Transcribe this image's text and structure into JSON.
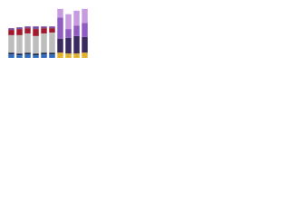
{
  "chart_data": {
    "type": "stacked-bar",
    "categories": [
      null,
      null,
      null,
      null,
      null,
      null,
      null,
      null,
      null,
      null
    ],
    "ylim": [
      0,
      60
    ],
    "series": [
      {
        "color": "#2e6bbf",
        "values": [
          4,
          3,
          4,
          3,
          4,
          4,
          0,
          0,
          0,
          0
        ]
      },
      {
        "color": "#1f2d4f",
        "values": [
          2,
          2,
          2,
          2,
          2,
          2,
          0,
          0,
          0,
          0
        ]
      },
      {
        "color": "#bdbdbd",
        "values": [
          20,
          21,
          22,
          20,
          22,
          23,
          0,
          0,
          0,
          0
        ]
      },
      {
        "color": "#a3182b",
        "values": [
          6,
          7,
          6,
          8,
          6,
          5,
          0,
          0,
          0,
          0
        ]
      },
      {
        "color": "#7b4fa3",
        "values": [
          2,
          2,
          2,
          3,
          2,
          2,
          0,
          0,
          0,
          0
        ]
      },
      {
        "color": "#e2b22a",
        "values": [
          0,
          0,
          0,
          0,
          0,
          0,
          6,
          5,
          5,
          6
        ]
      },
      {
        "color": "#3b2a5e",
        "values": [
          0,
          0,
          0,
          0,
          0,
          0,
          16,
          18,
          20,
          18
        ]
      },
      {
        "color": "#8e5cc2",
        "values": [
          0,
          0,
          0,
          0,
          0,
          0,
          24,
          10,
          12,
          16
        ]
      },
      {
        "color": "#c79bdf",
        "values": [
          0,
          0,
          0,
          0,
          0,
          0,
          10,
          17,
          17,
          16
        ]
      }
    ]
  }
}
